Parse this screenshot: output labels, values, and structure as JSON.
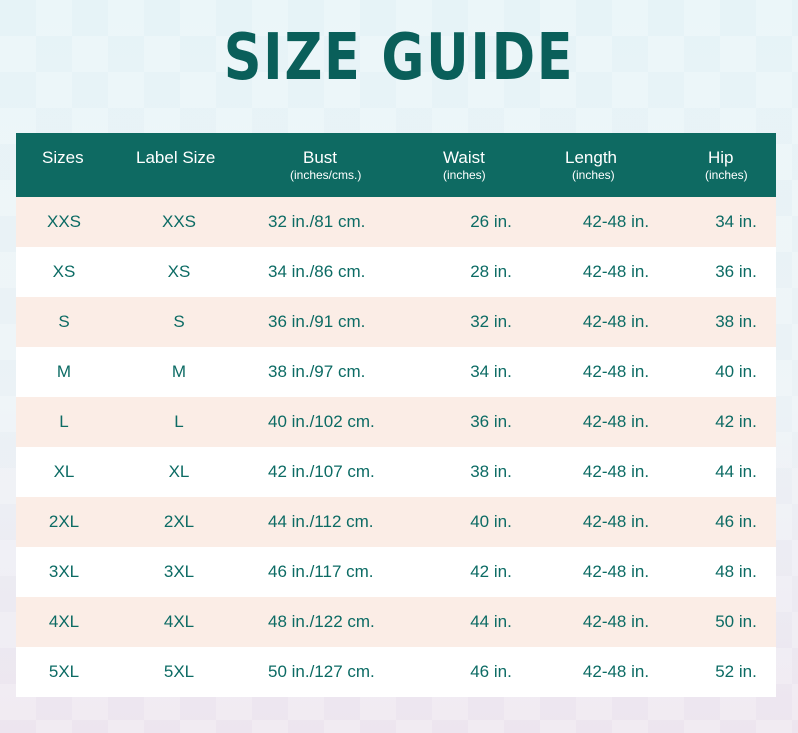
{
  "title": "SIZE GUIDE",
  "columns": [
    {
      "label": "Sizes",
      "sub": ""
    },
    {
      "label": "Label Size",
      "sub": ""
    },
    {
      "label": "Bust",
      "sub": "(inches/cms.)"
    },
    {
      "label": "Waist",
      "sub": "(inches)"
    },
    {
      "label": "Length",
      "sub": "(inches)"
    },
    {
      "label": "Hip",
      "sub": "(inches)"
    }
  ],
  "rows": [
    [
      "XXS",
      "XXS",
      "32 in./81 cm.",
      "26 in.",
      "42-48 in.",
      "34 in."
    ],
    [
      "XS",
      "XS",
      "34 in./86 cm.",
      "28 in.",
      "42-48 in.",
      "36 in."
    ],
    [
      "S",
      "S",
      "36 in./91 cm.",
      "32 in.",
      "42-48 in.",
      "38 in."
    ],
    [
      "M",
      "M",
      "38 in./97 cm.",
      "34 in.",
      "42-48 in.",
      "40 in."
    ],
    [
      "L",
      "L",
      "40 in./102 cm.",
      "36 in.",
      "42-48 in.",
      "42 in."
    ],
    [
      "XL",
      "XL",
      "42 in./107 cm.",
      "38 in.",
      "42-48 in.",
      "44 in."
    ],
    [
      "2XL",
      "2XL",
      "44 in./112 cm.",
      "40 in.",
      "42-48 in.",
      "46 in."
    ],
    [
      "3XL",
      "3XL",
      "46 in./117 cm.",
      "42 in.",
      "42-48 in.",
      "48 in."
    ],
    [
      "4XL",
      "4XL",
      "48 in./122 cm.",
      "44 in.",
      "42-48 in.",
      "50 in."
    ],
    [
      "5XL",
      "5XL",
      "50 in./127 cm.",
      "46 in.",
      "42-48 in.",
      "52 in."
    ]
  ],
  "colors": {
    "header_bg": "#0e6a62",
    "text_teal": "#0c6b64",
    "row_pink": "#fbede6",
    "row_white": "#ffffff"
  }
}
